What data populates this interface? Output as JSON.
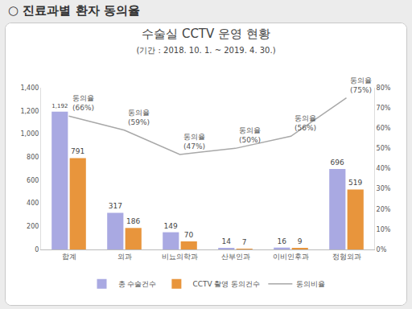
{
  "chart_data": {
    "type": "bar",
    "heading": "○ 진료과별 환자 동의율",
    "title": "수술실 CCTV 운영 현황",
    "subtitle": "(기간 : 2018. 10. 1. ~ 2019. 4. 30.)",
    "categories": [
      "합계",
      "외과",
      "비뇨의학과",
      "산부인과",
      "이비인후과",
      "정형외과"
    ],
    "series": [
      {
        "name": "총 수술건수",
        "type": "bar",
        "color": "#a9a9e2",
        "values": [
          1192,
          317,
          149,
          14,
          16,
          696
        ],
        "value_labels": [
          "1,192",
          "317",
          "149",
          "14",
          "16",
          "696"
        ]
      },
      {
        "name": "CCTV 촬영 동의건수",
        "type": "bar",
        "color": "#e8953c",
        "values": [
          791,
          186,
          70,
          7,
          9,
          519
        ]
      },
      {
        "name": "동의비율",
        "type": "line",
        "axis": "y2",
        "color": "#a8a8a8",
        "values": [
          66,
          59,
          47,
          50,
          56,
          75
        ],
        "value_labels": [
          "동의율\n(66%)",
          "동의율\n(59%)",
          "동의율\n(47%)",
          "동의율\n(50%)",
          "동의율\n(56%)",
          "동의율\n(75%)"
        ]
      }
    ],
    "ylim": [
      0,
      1400
    ],
    "yticks": [
      0,
      200,
      400,
      600,
      800,
      {
        "value": 1000,
        "label": "1,000"
      },
      {
        "value": 1200,
        "label": "1,200"
      },
      {
        "value": 1400,
        "label": "1,400"
      }
    ],
    "y2lim": [
      0,
      80
    ],
    "y2ticks": [
      {
        "value": 0,
        "label": "0%"
      },
      {
        "value": 10,
        "label": "10%"
      },
      {
        "value": 20,
        "label": "20%"
      },
      {
        "value": 30,
        "label": "30%"
      },
      {
        "value": 40,
        "label": "40%"
      },
      {
        "value": 50,
        "label": "50%"
      },
      {
        "value": 60,
        "label": "60%"
      },
      {
        "value": 70,
        "label": "70%"
      },
      {
        "value": 80,
        "label": "80%"
      }
    ],
    "data_labels": true,
    "legend": "bottom",
    "grid": false
  }
}
